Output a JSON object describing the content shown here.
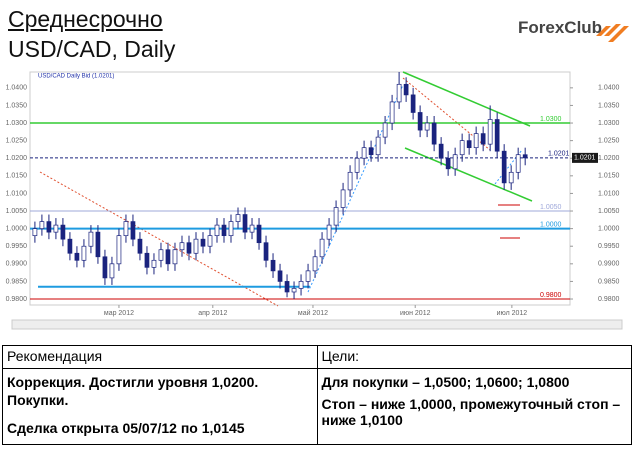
{
  "header": {
    "title": "Среднесрочно",
    "subtitle": "USD/CAD, Daily",
    "logo": "ForexClub"
  },
  "chart_data": {
    "type": "candlestick",
    "legend_text": "USD/CAD Daily Bid (1.0201)",
    "ylim": [
      0.9783,
      1.0445
    ],
    "yticks": [
      {
        "value": 0.98,
        "label": "0.9800"
      },
      {
        "value": 0.985,
        "label": "0.9850"
      },
      {
        "value": 0.99,
        "label": "0.9900"
      },
      {
        "value": 0.995,
        "label": "0.9950"
      },
      {
        "value": 1.0,
        "label": "1.0000"
      },
      {
        "value": 1.005,
        "label": "1.0050"
      },
      {
        "value": 1.01,
        "label": "1.0100"
      },
      {
        "value": 1.015,
        "label": "1.0150"
      },
      {
        "value": 1.02,
        "label": "1.0200"
      },
      {
        "value": 1.025,
        "label": "1.0250"
      },
      {
        "value": 1.03,
        "label": "1.0300"
      },
      {
        "value": 1.035,
        "label": "1.0350"
      },
      {
        "value": 1.04,
        "label": "1.0400"
      }
    ],
    "xlim": [
      -0.7,
      76.4
    ],
    "xticks": [
      {
        "value": 12,
        "label": "мар 2012"
      },
      {
        "value": 25.4,
        "label": "апр 2012"
      },
      {
        "value": 39.7,
        "label": "май 2012"
      },
      {
        "value": 54.3,
        "label": "июн 2012"
      },
      {
        "value": 68.1,
        "label": "июл 2012"
      }
    ],
    "open": [
      0.998,
      1.0,
      1.002,
      0.999,
      1.001,
      0.997,
      0.993,
      0.991,
      0.995,
      0.999,
      0.992,
      0.986,
      0.99,
      0.998,
      1.002,
      0.997,
      0.993,
      0.989,
      0.991,
      0.994,
      0.99,
      0.994,
      0.996,
      0.993,
      0.997,
      0.995,
      0.998,
      1.001,
      0.998,
      1.002,
      1.004,
      0.999,
      1.001,
      0.996,
      0.991,
      0.988,
      0.985,
      0.982,
      0.983,
      0.985,
      0.988,
      0.992,
      0.997,
      1.001,
      1.006,
      1.011,
      1.016,
      1.02,
      1.023,
      1.021,
      1.026,
      1.03,
      1.036,
      1.041,
      1.038,
      1.033,
      1.028,
      1.03,
      1.024,
      1.02,
      1.017,
      1.021,
      1.025,
      1.023,
      1.027,
      1.024,
      1.031,
      1.022,
      1.013,
      1.016,
      1.021
    ],
    "high": [
      1.002,
      1.004,
      1.004,
      1.003,
      1.003,
      0.999,
      0.995,
      0.997,
      1.001,
      1.001,
      0.994,
      0.992,
      1.0,
      1.004,
      1.004,
      0.999,
      0.995,
      0.993,
      0.996,
      0.996,
      0.996,
      0.998,
      0.998,
      0.999,
      0.999,
      1.0,
      1.003,
      1.003,
      1.004,
      1.006,
      1.006,
      1.003,
      1.003,
      0.998,
      0.993,
      0.99,
      0.987,
      0.985,
      0.987,
      0.99,
      0.994,
      0.999,
      1.003,
      1.008,
      1.013,
      1.018,
      1.022,
      1.025,
      1.025,
      1.028,
      1.032,
      1.038,
      1.0445,
      1.043,
      1.04,
      1.035,
      1.032,
      1.032,
      1.026,
      1.022,
      1.023,
      1.027,
      1.027,
      1.029,
      1.029,
      1.035,
      1.033,
      1.024,
      1.018,
      1.023,
      1.023
    ],
    "low": [
      0.996,
      0.998,
      0.997,
      0.997,
      0.995,
      0.991,
      0.989,
      0.989,
      0.993,
      0.99,
      0.984,
      0.984,
      0.988,
      0.996,
      0.995,
      0.991,
      0.987,
      0.987,
      0.989,
      0.988,
      0.988,
      0.992,
      0.991,
      0.991,
      0.993,
      0.993,
      0.996,
      0.996,
      0.996,
      1.0,
      0.997,
      0.997,
      0.994,
      0.989,
      0.986,
      0.983,
      0.9805,
      0.98,
      0.981,
      0.983,
      0.986,
      0.99,
      0.995,
      0.999,
      1.004,
      1.009,
      1.014,
      1.018,
      1.019,
      1.019,
      1.024,
      1.028,
      1.034,
      1.036,
      1.031,
      1.026,
      1.026,
      1.022,
      1.018,
      1.015,
      1.015,
      1.019,
      1.021,
      1.021,
      1.022,
      1.022,
      1.02,
      1.011,
      1.011,
      1.014,
      1.018
    ],
    "close": [
      1.0,
      1.002,
      0.999,
      1.001,
      0.997,
      0.993,
      0.991,
      0.995,
      0.999,
      0.992,
      0.986,
      0.99,
      0.998,
      1.002,
      0.997,
      0.993,
      0.989,
      0.991,
      0.994,
      0.99,
      0.994,
      0.996,
      0.993,
      0.997,
      0.995,
      0.998,
      1.001,
      0.998,
      1.002,
      1.004,
      0.999,
      1.001,
      0.996,
      0.991,
      0.988,
      0.985,
      0.982,
      0.983,
      0.985,
      0.988,
      0.992,
      0.997,
      1.001,
      1.006,
      1.011,
      1.016,
      1.02,
      1.023,
      1.021,
      1.026,
      1.03,
      1.036,
      1.041,
      1.038,
      1.033,
      1.028,
      1.03,
      1.024,
      1.02,
      1.017,
      1.021,
      1.025,
      1.023,
      1.027,
      1.024,
      1.031,
      1.022,
      1.013,
      1.016,
      1.021,
      1.0201
    ],
    "levels": [
      {
        "value": 1.03,
        "label": "1.0300",
        "color": "#33cc33"
      },
      {
        "value": 1.0201,
        "label": "1.0201",
        "color": "#1a237e"
      },
      {
        "value": 1.005,
        "label": "1.0050",
        "color": "#9fa8da"
      },
      {
        "value": 1.0,
        "label": "1.0000",
        "color": "#1e9be0"
      },
      {
        "value": 0.9835,
        "color": "#1e9be0"
      },
      {
        "value": 0.98,
        "label": "0.9800",
        "color": "#cc0000"
      }
    ]
  },
  "table": {
    "headers": [
      "Рекомендация",
      "Цели:"
    ],
    "left": [
      "Коррекция. Достигли уровня 1,0200.",
      "Покупки.",
      "Сделка открыта 05/07/12 по 1,0145"
    ],
    "right": [
      "Для покупки – 1,0500; 1,0600; 1,0800",
      "Стоп – ниже 1,0000, промежуточный стоп – ниже 1,0100"
    ]
  }
}
